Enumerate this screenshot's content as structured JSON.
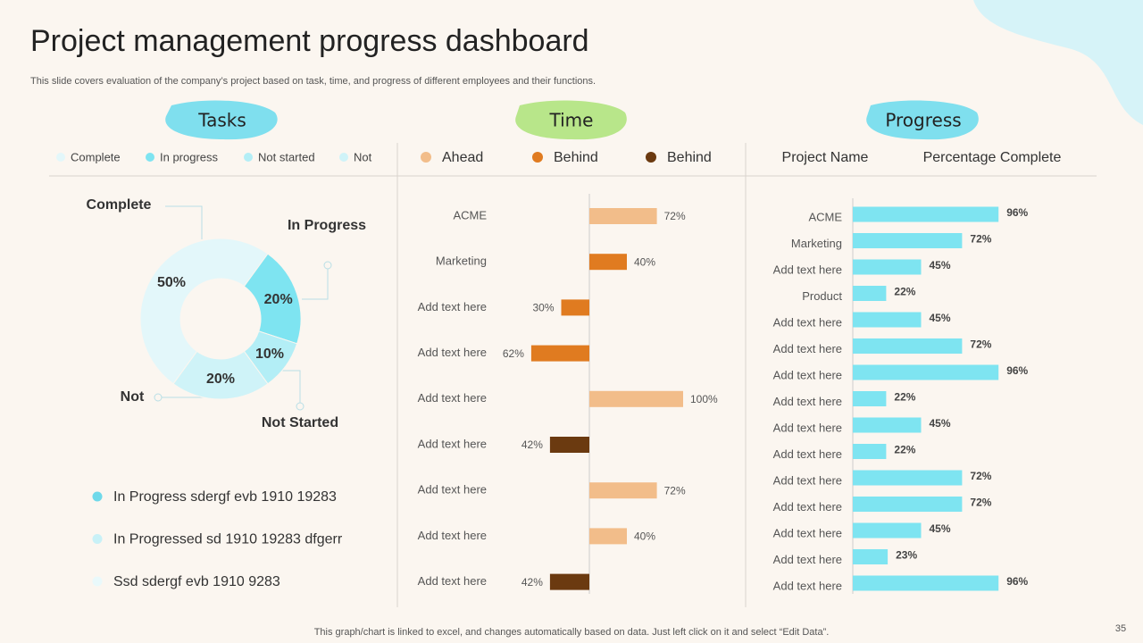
{
  "header": {
    "title": "Project management progress dashboard",
    "subtitle": "This slide covers evaluation of the company’s project based on task, time, and progress of different employees and their functions."
  },
  "chart_data": [
    {
      "type": "pie",
      "title": "Tasks",
      "categories": [
        "Complete",
        "In progress",
        "Not started",
        "Not"
      ],
      "values": [
        50,
        20,
        10,
        20
      ],
      "value_labels": [
        "50%",
        "20%",
        "10%",
        "20%"
      ],
      "colors": [
        "#e3f7fa",
        "#7ee4f1",
        "#b3eef6",
        "#cff3f8"
      ],
      "callouts": [
        "Complete",
        "In Progress",
        "Not Started",
        "Not"
      ]
    },
    {
      "type": "bar",
      "title": "Time",
      "categories": [
        "ACME",
        "Marketing",
        "Add text here",
        "Add text here",
        "Add text here",
        "Add text here",
        "Add text here",
        "Add text here",
        "Add text here"
      ],
      "xlim": [
        -100,
        100
      ],
      "series": [
        {
          "name": "Ahead",
          "color": "#f2bd8a",
          "values": [
            72,
            null,
            null,
            null,
            100,
            null,
            72,
            40,
            null
          ],
          "value_labels": [
            "72%",
            null,
            null,
            null,
            "100%",
            null,
            "72%",
            "40%",
            null
          ]
        },
        {
          "name": "Behind",
          "color": "#e07b20",
          "values": [
            null,
            40,
            -30,
            -62,
            null,
            null,
            null,
            null,
            null
          ],
          "value_labels": [
            null,
            "40%",
            "30%",
            "62%",
            null,
            null,
            null,
            null,
            null
          ]
        },
        {
          "name": "Behind",
          "color": "#6b3a10",
          "values": [
            null,
            null,
            null,
            null,
            null,
            -42,
            null,
            null,
            -42
          ],
          "value_labels": [
            null,
            null,
            null,
            null,
            null,
            "42%",
            null,
            null,
            "42%"
          ]
        }
      ]
    },
    {
      "type": "bar",
      "title": "Progress",
      "headers": [
        "Project Name",
        "Percentage Complete"
      ],
      "categories": [
        "ACME",
        "Marketing",
        "Add text here",
        "Product",
        "Add text here",
        "Add text here",
        "Add text here",
        "Add text here",
        "Add text here",
        "Add text here",
        "Add text here",
        "Add text here",
        "Add text here",
        "Add text here",
        "Add text here"
      ],
      "values": [
        96,
        72,
        45,
        22,
        45,
        72,
        96,
        22,
        45,
        22,
        72,
        72,
        45,
        23,
        96
      ],
      "value_labels": [
        "96%",
        "72%",
        "45%",
        "22%",
        "45%",
        "72%",
        "96%",
        "22%",
        "45%",
        "22%",
        "72%",
        "72%",
        "45%",
        "23%",
        "96%"
      ],
      "color": "#7ee4f1",
      "xlim": [
        0,
        100
      ]
    }
  ],
  "notes": [
    {
      "text": "In Progress sdergf evb 1910 19283",
      "color": "#6fd9ea"
    },
    {
      "text": "In Progressed sd 1910 19283 dfgerr",
      "color": "#c8f1f7"
    },
    {
      "text": "Ssd sdergf evb 1910 9283",
      "color": "#e9f9fb"
    }
  ],
  "footer": "This graph/chart is linked to excel,  and changes automatically based on data. Just left click on it and select “Edit Data”.",
  "page_number": 35
}
